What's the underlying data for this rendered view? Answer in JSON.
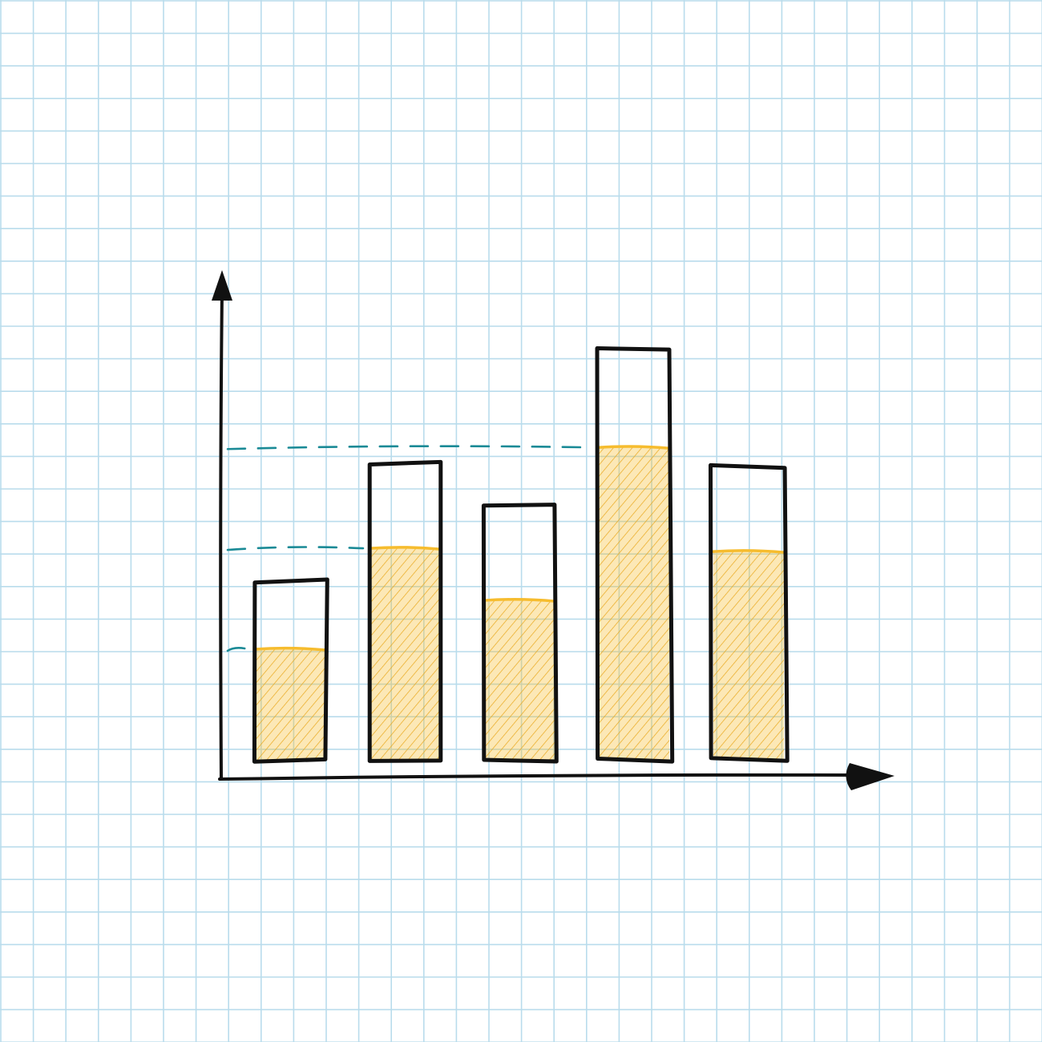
{
  "chart_data": {
    "type": "bar",
    "style": "hand-drawn sketch on grid paper",
    "categories": [],
    "bars": [
      {
        "outline": 5.5,
        "fill": 3.4
      },
      {
        "outline": 9.1,
        "fill": 6.5
      },
      {
        "outline": 7.8,
        "fill": 4.9
      },
      {
        "outline": 12.6,
        "fill": 9.6
      },
      {
        "outline": 9.0,
        "fill": 6.4
      }
    ],
    "reference_lines": [
      {
        "value": 3.4,
        "to_bar": 0
      },
      {
        "value": 6.5,
        "to_bar": 1
      },
      {
        "value": 9.6,
        "to_bar": 3
      }
    ],
    "ylim": [
      0,
      16
    ],
    "grid": true,
    "legend": "none",
    "title": "",
    "xlabel": "",
    "ylabel": ""
  },
  "colors": {
    "grid": "#b9dcec",
    "ink": "#111111",
    "fill": "#f6bc2e",
    "hatch": "#e9a81c",
    "reference": "#1a8a96",
    "paper": "#ffffff"
  }
}
